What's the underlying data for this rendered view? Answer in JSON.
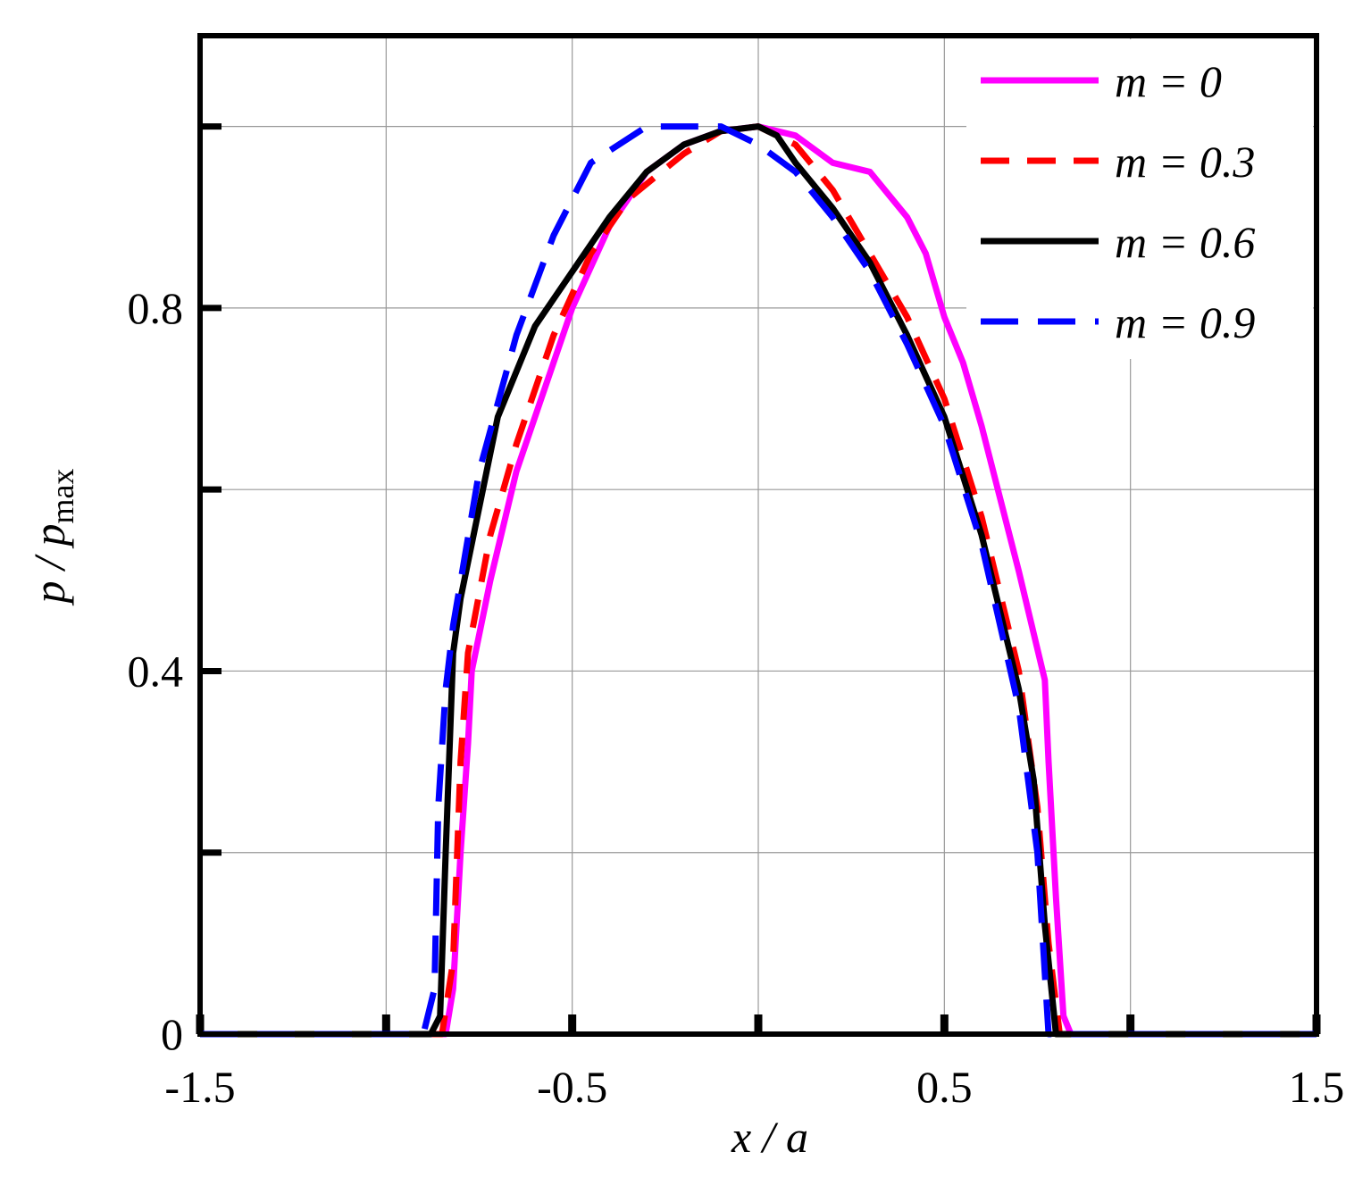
{
  "chart_data": {
    "type": "line",
    "xlabel": "x / a",
    "ylabel": "p / p",
    "ylabel_sub": "max",
    "xlim": [
      -1.5,
      1.5
    ],
    "ylim": [
      0,
      1.1
    ],
    "xticks": [
      -1.5,
      {
        "value": -1,
        "label": null
      },
      -0.5,
      {
        "value": 0,
        "label": null
      },
      0.5,
      {
        "value": 1,
        "label": null
      },
      1.5
    ],
    "yticks": [
      0,
      {
        "value": 0.2,
        "label": null
      },
      0.4,
      {
        "value": 0.6,
        "label": null
      },
      0.8,
      {
        "value": 1.0,
        "label": null
      }
    ],
    "grid": true,
    "legend": "upper right",
    "series": [
      {
        "name": "m = 0",
        "color": "#ff00ff",
        "dash": false,
        "x": [
          -1.5,
          -0.84,
          -0.82,
          -0.8,
          -0.78,
          -0.77,
          -0.72,
          -0.65,
          -0.5,
          -0.4,
          -0.3,
          -0.2,
          -0.1,
          0,
          0.1,
          0.2,
          0.3,
          0.4,
          0.45,
          0.5,
          0.55,
          0.6,
          0.65,
          0.7,
          0.77,
          0.78,
          0.8,
          0.82,
          0.84,
          1.5
        ],
        "values": [
          0,
          0,
          0.05,
          0.2,
          0.32,
          0.4,
          0.5,
          0.62,
          0.8,
          0.89,
          0.95,
          0.98,
          0.995,
          1.0,
          0.99,
          0.96,
          0.95,
          0.9,
          0.86,
          0.79,
          0.74,
          0.67,
          0.59,
          0.51,
          0.39,
          0.3,
          0.15,
          0.02,
          0,
          0
        ]
      },
      {
        "name": "m = 0.3",
        "color": "#ff0000",
        "dash": true,
        "x": [
          -1.5,
          -0.85,
          -0.82,
          -0.8,
          -0.78,
          -0.72,
          -0.65,
          -0.55,
          -0.45,
          -0.35,
          -0.2,
          -0.1,
          0,
          0.1,
          0.2,
          0.3,
          0.4,
          0.5,
          0.6,
          0.7,
          0.75,
          0.78,
          0.81,
          1.5
        ],
        "values": [
          0,
          0,
          0.08,
          0.3,
          0.42,
          0.55,
          0.65,
          0.77,
          0.86,
          0.92,
          0.97,
          0.995,
          1.0,
          0.98,
          0.93,
          0.86,
          0.79,
          0.7,
          0.57,
          0.4,
          0.25,
          0.1,
          0,
          0
        ]
      },
      {
        "name": "m = 0.6",
        "color": "#000000",
        "dash": false,
        "x": [
          -1.5,
          -0.88,
          -0.855,
          -0.84,
          -0.82,
          -0.8,
          -0.74,
          -0.7,
          -0.6,
          -0.5,
          -0.4,
          -0.3,
          -0.2,
          -0.1,
          0,
          0.05,
          0.1,
          0.2,
          0.3,
          0.4,
          0.5,
          0.6,
          0.7,
          0.74,
          0.77,
          0.8,
          1.5
        ],
        "values": [
          0,
          0,
          0.02,
          0.2,
          0.42,
          0.48,
          0.6,
          0.68,
          0.78,
          0.84,
          0.9,
          0.95,
          0.98,
          0.995,
          1.0,
          0.99,
          0.96,
          0.91,
          0.85,
          0.77,
          0.68,
          0.55,
          0.38,
          0.28,
          0.12,
          0,
          0
        ]
      },
      {
        "name": "m = 0.9",
        "color": "#0000ff",
        "dash": true,
        "x": [
          -1.5,
          -0.9,
          -0.87,
          -0.86,
          -0.84,
          -0.82,
          -0.75,
          -0.65,
          -0.55,
          -0.45,
          -0.3,
          -0.2,
          -0.1,
          0,
          0.1,
          0.2,
          0.3,
          0.4,
          0.5,
          0.6,
          0.7,
          0.75,
          0.78,
          0.9,
          1.5
        ],
        "values": [
          0,
          0,
          0.05,
          0.25,
          0.38,
          0.45,
          0.62,
          0.77,
          0.88,
          0.96,
          1.0,
          1.0,
          1.0,
          0.98,
          0.95,
          0.9,
          0.84,
          0.76,
          0.67,
          0.54,
          0.36,
          0.2,
          0,
          0,
          0
        ]
      }
    ]
  }
}
